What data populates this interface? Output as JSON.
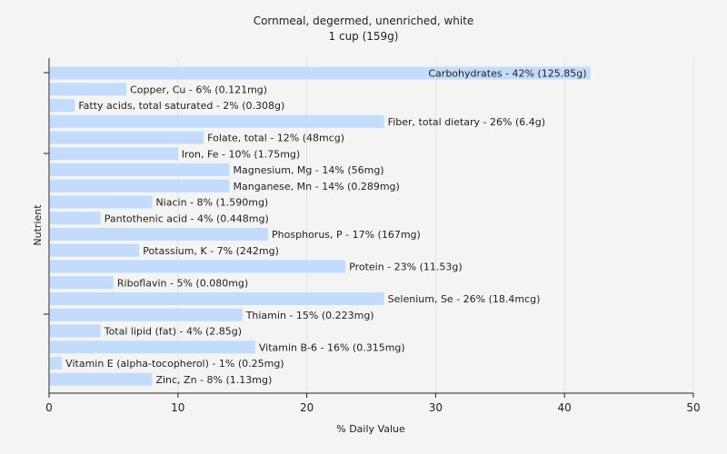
{
  "chart_data": {
    "type": "bar",
    "orientation": "horizontal",
    "title": "Cornmeal, degermed, unenriched, white",
    "subtitle": "1 cup (159g)",
    "xlabel": "% Daily Value",
    "ylabel": "Nutrient",
    "xlim": [
      0,
      50
    ],
    "xticks": [
      0,
      10,
      20,
      30,
      40,
      50
    ],
    "grid": true,
    "bar_color": "#c4dcfc",
    "categories": [
      "Carbohydrates",
      "Copper, Cu",
      "Fatty acids, total saturated",
      "Fiber, total dietary",
      "Folate, total",
      "Iron, Fe",
      "Magnesium, Mg",
      "Manganese, Mn",
      "Niacin",
      "Pantothenic acid",
      "Phosphorus, P",
      "Potassium, K",
      "Protein",
      "Riboflavin",
      "Selenium, Se",
      "Thiamin",
      "Total lipid (fat)",
      "Vitamin B-6",
      "Vitamin E (alpha-tocopherol)",
      "Zinc, Zn"
    ],
    "values": [
      42,
      6,
      2,
      26,
      12,
      10,
      14,
      14,
      8,
      4,
      17,
      7,
      23,
      5,
      26,
      15,
      4,
      16,
      1,
      8
    ],
    "labels": [
      "Carbohydrates - 42% (125.85g)",
      "Copper, Cu - 6% (0.121mg)",
      "Fatty acids, total saturated - 2% (0.308g)",
      "Fiber, total dietary - 26% (6.4g)",
      "Folate, total - 12% (48mcg)",
      "Iron, Fe - 10% (1.75mg)",
      "Magnesium, Mg - 14% (56mg)",
      "Manganese, Mn - 14% (0.289mg)",
      "Niacin - 8% (1.590mg)",
      "Pantothenic acid - 4% (0.448mg)",
      "Phosphorus, P - 17% (167mg)",
      "Potassium, K - 7% (242mg)",
      "Protein - 23% (11.53g)",
      "Riboflavin - 5% (0.080mg)",
      "Selenium, Se - 26% (18.4mcg)",
      "Thiamin - 15% (0.223mg)",
      "Total lipid (fat) - 4% (2.85g)",
      "Vitamin B-6 - 16% (0.315mg)",
      "Vitamin E (alpha-tocopherol) - 1% (0.25mg)",
      "Zinc, Zn - 8% (1.13mg)"
    ]
  }
}
